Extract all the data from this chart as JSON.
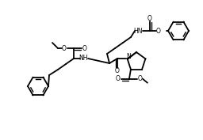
{
  "bg_color": "#ffffff",
  "lw": 1.3,
  "figsize": [
    2.56,
    1.77
  ],
  "dpi": 100,
  "xlim": [
    0,
    256
  ],
  "ylim": [
    0,
    177
  ]
}
